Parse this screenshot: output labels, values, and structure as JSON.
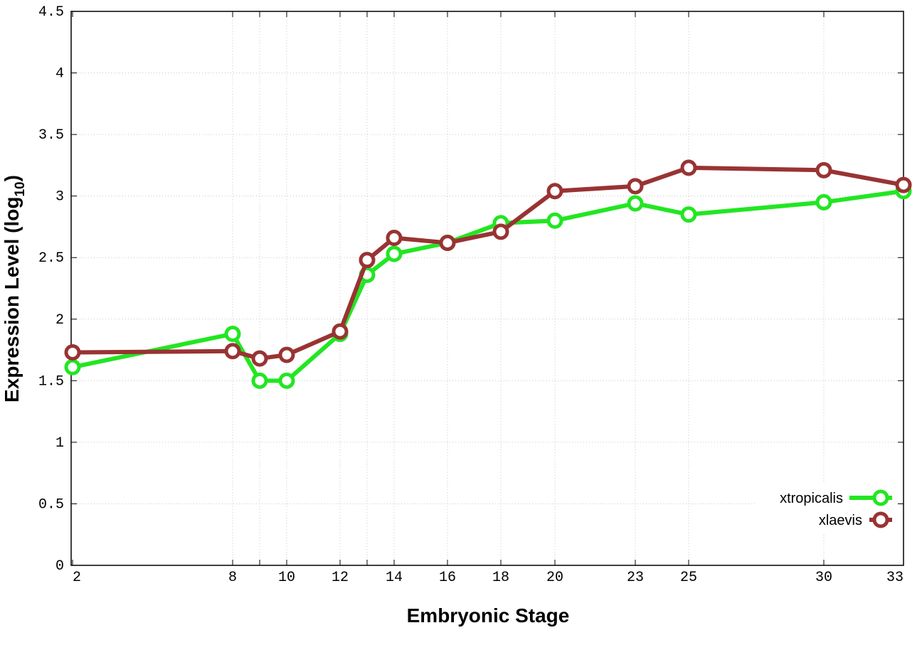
{
  "chart_data": {
    "type": "line",
    "title": "",
    "xlabel": "Embryonic Stage",
    "ylabel_main": "Expression Level (log",
    "ylabel_sub": "10",
    "ylabel_close": ")",
    "x_scale": "categorical",
    "x_ticks": [
      2,
      8,
      9,
      10,
      12,
      13,
      14,
      16,
      18,
      20,
      23,
      25,
      30,
      33
    ],
    "x_tick_labels": [
      "2",
      "8",
      "10",
      "12",
      "14",
      "16",
      "18",
      "20",
      "23",
      "25",
      "30",
      "33"
    ],
    "y_ticks": [
      "0",
      "0.5",
      "1",
      "1.5",
      "2",
      "2.5",
      "3",
      "3.5",
      "4",
      "4.5"
    ],
    "ylim": [
      0,
      4.5
    ],
    "grid": true,
    "legend_position": "bottom-right",
    "series": [
      {
        "name": "xtropicalis",
        "color": "#22e622",
        "x": [
          2,
          8,
          9,
          10,
          12,
          13,
          14,
          16,
          18,
          20,
          23,
          25,
          30,
          33
        ],
        "y": [
          1.61,
          1.88,
          1.5,
          1.5,
          1.88,
          2.36,
          2.53,
          2.62,
          2.78,
          2.8,
          2.94,
          2.85,
          2.95,
          3.04
        ]
      },
      {
        "name": "xlaevis",
        "color": "#993333",
        "x": [
          2,
          8,
          9,
          10,
          12,
          13,
          14,
          16,
          18,
          20,
          23,
          25,
          30,
          33
        ],
        "y": [
          1.73,
          1.74,
          1.68,
          1.71,
          1.9,
          2.48,
          2.66,
          2.62,
          2.71,
          3.04,
          3.08,
          3.23,
          3.21,
          3.09
        ]
      }
    ]
  }
}
